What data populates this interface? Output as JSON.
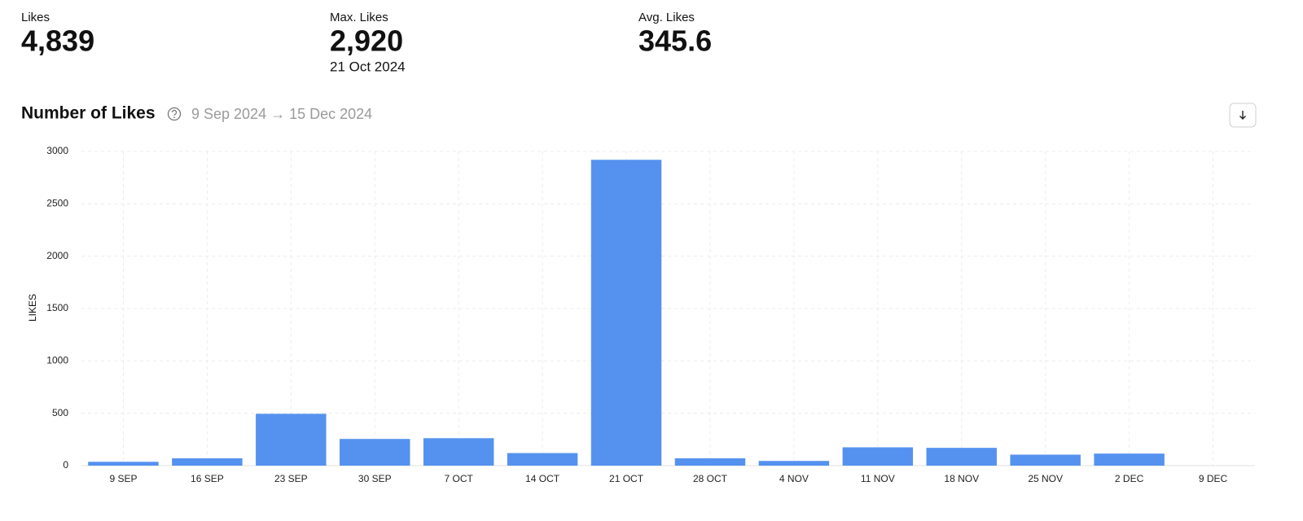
{
  "stats": [
    {
      "label": "Likes",
      "value": "4,839"
    },
    {
      "label": "Max. Likes",
      "value": "2,920",
      "note": "21 Oct 2024"
    },
    {
      "label": "Avg. Likes",
      "value": "345.6"
    }
  ],
  "chart_data": {
    "type": "bar",
    "title": "Number of Likes",
    "subtitle": "9 Sep 2024 → 15 Dec 2024",
    "y_label": "LIKES",
    "categories": [
      "9 SEP",
      "16 SEP",
      "23 SEP",
      "30 SEP",
      "7 OCT",
      "14 OCT",
      "21 OCT",
      "28 OCT",
      "4 NOV",
      "11 NOV",
      "18 NOV",
      "25 NOV",
      "2 DEC",
      "9 DEC"
    ],
    "values": [
      37,
      70,
      495,
      255,
      262,
      120,
      2920,
      70,
      45,
      175,
      170,
      105,
      115,
      0
    ],
    "color": "#5592f0",
    "ylim": [
      0,
      3000
    ],
    "yticks": [
      0,
      500,
      1000,
      1500,
      2000,
      2500,
      3000
    ],
    "grid": true
  }
}
